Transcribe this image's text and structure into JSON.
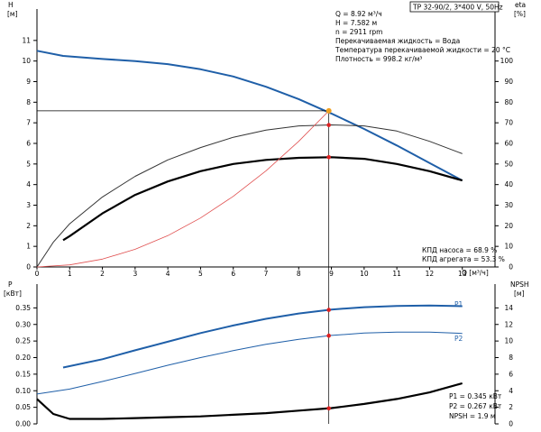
{
  "chart_data": [
    {
      "type": "line",
      "title": "TP 32-90/2, 3*400 V, 50Hz",
      "left_axis": {
        "label": "H",
        "unit": "[м]",
        "ylim": [
          0,
          12
        ],
        "ticks": [
          0,
          1,
          2,
          3,
          4,
          5,
          6,
          7,
          8,
          9,
          10,
          11
        ]
      },
      "right_axis": {
        "label": "eta",
        "unit": "[%]",
        "ylim": [
          0,
          120
        ],
        "ticks": [
          0,
          10,
          20,
          30,
          40,
          50,
          60,
          70,
          80,
          90,
          100
        ]
      },
      "x_axis": {
        "label": "Q [м³/ч]",
        "xlim": [
          0,
          14
        ],
        "ticks": [
          0,
          1,
          2,
          3,
          4,
          5,
          6,
          7,
          8,
          9,
          10,
          11,
          12,
          13
        ]
      },
      "info": [
        "Q = 8.92 м³/ч",
        "H = 7.582 м",
        "n = 2911 rpm",
        "Перекачиваемая жидкость = Вода",
        "Температура перекачиваемой жидкости = 20 °C",
        "Плотность = 998.2 кг/м³"
      ],
      "footer_info": [
        "КПД насоса = 68.9 %",
        "КПД агрегата = 53.3 %"
      ],
      "duty_point": {
        "q": 8.92,
        "h": 7.582,
        "eta_pump": 68.9,
        "eta_total": 53.3
      },
      "series": [
        {
          "axis": "left",
          "color": "#1f5fa8",
          "width": 2,
          "x": [
            0,
            0.8,
            2,
            3,
            4,
            5,
            6,
            7,
            8,
            9,
            10,
            11,
            12,
            13
          ],
          "y": [
            10.5,
            10.25,
            10.1,
            10.0,
            9.85,
            9.6,
            9.25,
            8.75,
            8.15,
            7.45,
            6.7,
            5.9,
            5.05,
            4.2
          ]
        },
        {
          "axis": "right",
          "color": "#333333",
          "width": 1,
          "x": [
            0,
            0.5,
            1,
            2,
            3,
            4,
            5,
            6,
            7,
            8,
            9,
            10,
            11,
            12,
            13
          ],
          "y": [
            0,
            12,
            21,
            34,
            44,
            52,
            58,
            63,
            66.5,
            68.5,
            69,
            68.5,
            66,
            61,
            55
          ]
        },
        {
          "axis": "right",
          "color": "#000000",
          "width": 2.2,
          "x": [
            0.8,
            1,
            2,
            3,
            4,
            5,
            6,
            7,
            8,
            9,
            10,
            11,
            12,
            13
          ],
          "y": [
            13,
            15,
            26,
            35,
            41.5,
            46.5,
            50,
            52,
            53,
            53.3,
            52.5,
            50,
            46.5,
            42
          ]
        },
        {
          "axis": "left",
          "color": "#e05050",
          "width": 0.8,
          "x": [
            0,
            1,
            2,
            3,
            4,
            5,
            6,
            7,
            8,
            8.92
          ],
          "y": [
            0,
            0.1,
            0.38,
            0.86,
            1.52,
            2.38,
            3.43,
            4.67,
            6.1,
            7.582
          ]
        }
      ]
    },
    {
      "type": "line",
      "left_axis": {
        "label": "P",
        "unit": "[кВт]",
        "ylim": [
          0,
          0.4
        ],
        "ticks": [
          0,
          0.05,
          0.1,
          0.15,
          0.2,
          0.25,
          0.3,
          0.35
        ]
      },
      "right_axis": {
        "label": "NPSH",
        "unit": "[м]",
        "ylim": [
          0,
          16
        ],
        "ticks": [
          0,
          2,
          4,
          6,
          8,
          10,
          12,
          14
        ]
      },
      "x_axis": {
        "xlim": [
          0,
          14
        ]
      },
      "footer_info": [
        "P1 = 0.345 кВт",
        "P2 = 0.267 кВт",
        "NPSH = 1.9 м"
      ],
      "series": [
        {
          "name": "P1",
          "axis": "left",
          "color": "#1f5fa8",
          "width": 2,
          "x": [
            0.8,
            2,
            3,
            4,
            5,
            6,
            7,
            8,
            9,
            10,
            11,
            12,
            13
          ],
          "y": [
            0.17,
            0.195,
            0.222,
            0.248,
            0.274,
            0.297,
            0.317,
            0.333,
            0.345,
            0.352,
            0.356,
            0.357,
            0.355
          ]
        },
        {
          "name": "P2",
          "axis": "left",
          "color": "#1f5fa8",
          "width": 1,
          "x": [
            0,
            1,
            2,
            3,
            4,
            5,
            6,
            7,
            8,
            9,
            10,
            11,
            12,
            13
          ],
          "y": [
            0.09,
            0.105,
            0.128,
            0.152,
            0.177,
            0.2,
            0.221,
            0.24,
            0.255,
            0.267,
            0.274,
            0.277,
            0.277,
            0.273
          ]
        },
        {
          "name": "",
          "axis": "right",
          "color": "#000000",
          "width": 2.2,
          "x": [
            0,
            0.5,
            1,
            2,
            3,
            4,
            5,
            6,
            7,
            8,
            9,
            10,
            11,
            12,
            13
          ],
          "y": [
            3.0,
            1.2,
            0.6,
            0.6,
            0.7,
            0.8,
            0.9,
            1.1,
            1.3,
            1.6,
            1.9,
            2.4,
            3.0,
            3.8,
            4.9
          ]
        }
      ]
    }
  ],
  "colors": {
    "head": "#1f5fa8",
    "system": "#e05050",
    "duty": "#f0a020",
    "marker": "#e02020"
  }
}
